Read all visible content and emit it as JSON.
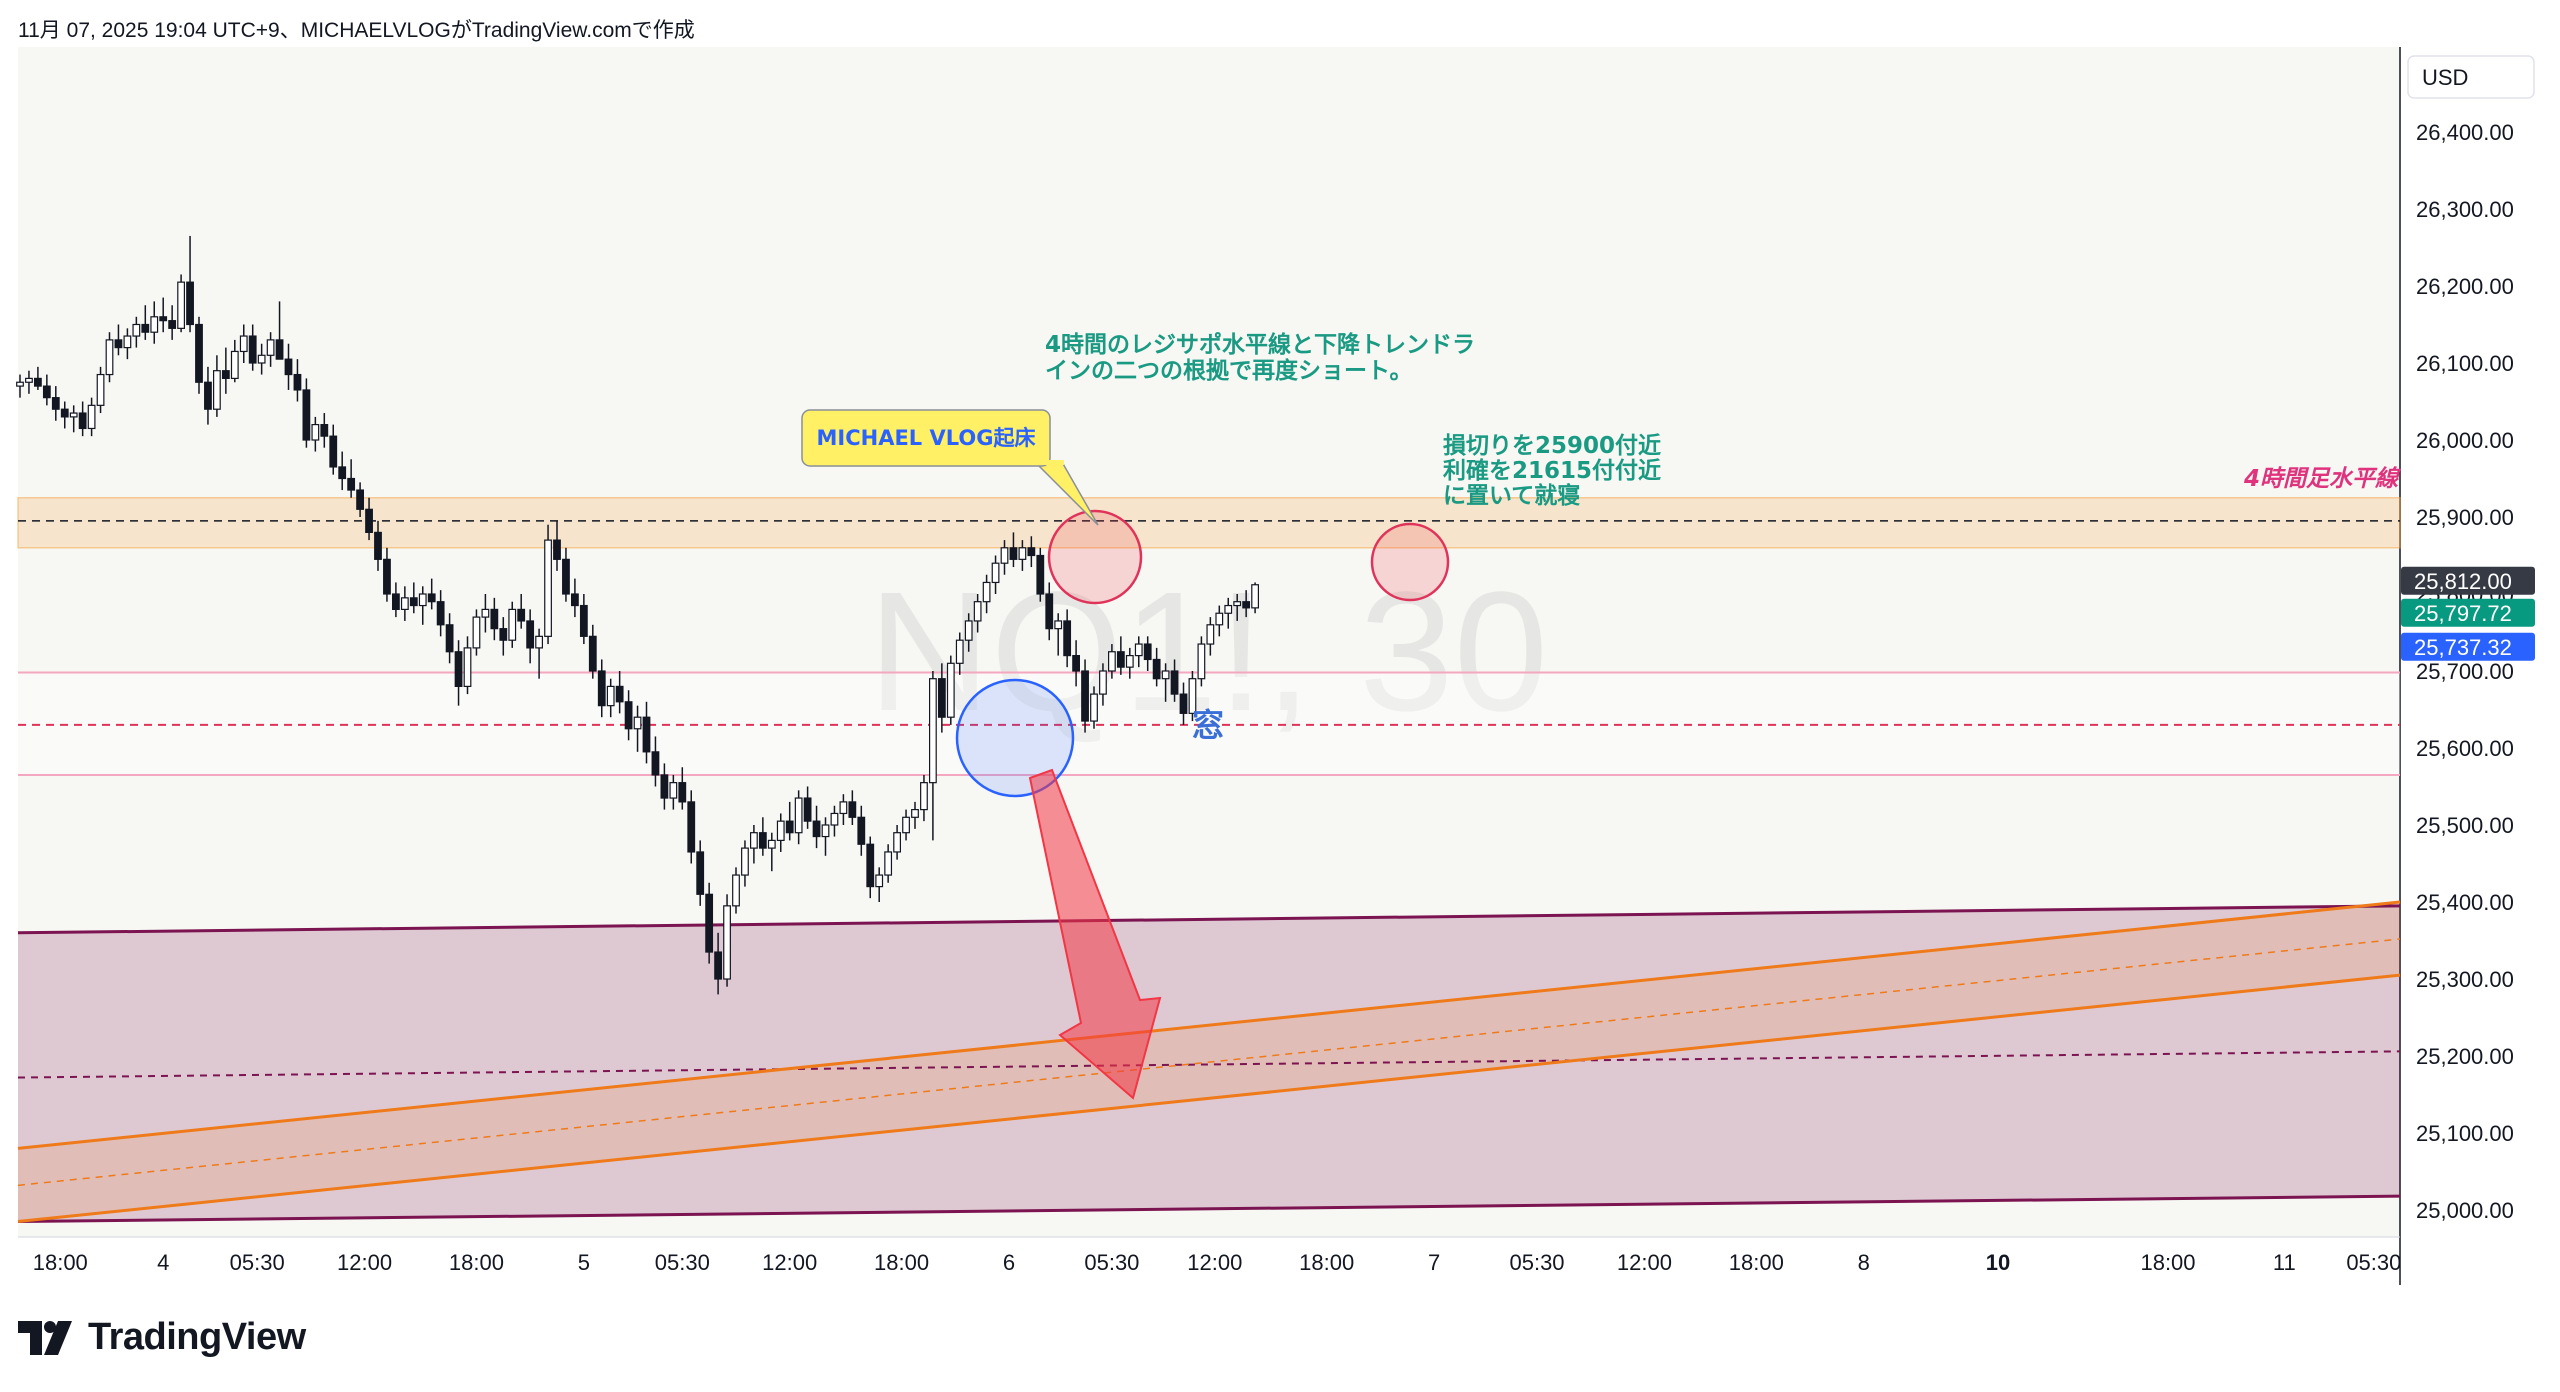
{
  "header": {
    "text": "11月 07, 2025 19:04 UTC+9、MICHAELVLOGがTradingView.comで作成"
  },
  "watermark": {
    "text": "NQ1!, 30"
  },
  "currency_label": "USD",
  "price_tags": [
    {
      "label": "25,812.00",
      "value": 25812,
      "color": "#363a45"
    },
    {
      "label": "25,797.72",
      "value": 25797.72,
      "color": "#089981"
    },
    {
      "label": "25,737.32",
      "value": 25737.32,
      "color": "#2962ff"
    }
  ],
  "annotations": {
    "short_reason_line1": "4時間のレジサポ水平線と下降トレンドラ",
    "short_reason_line2": "インの二つの根拠で再度ショート。",
    "sl_tp_line1": "損切りを25900付近",
    "sl_tp_line2": "利確を21615付付近",
    "sl_tp_line3": "に置いて就寝",
    "h4_level_label": "4時間足水平線",
    "callout": "MICHAEL VLOG起床",
    "window": "窓"
  },
  "brand": {
    "name": "TradingView"
  },
  "colors": {
    "up": "#ffffff",
    "down": "#131722",
    "resistance_band": "#f7a440",
    "channel_purple": "#7b1450",
    "trend_orange": "#ef7a1a",
    "arrow_red": "#f23645",
    "circle_red": "#f23645",
    "circle_blue": "#2962ff",
    "chart_bg": "#f7f7f4"
  },
  "chart_data": {
    "type": "candlestick",
    "symbol": "NQ1!",
    "timeframe": "30",
    "ylim": [
      24970,
      26480
    ],
    "y_ticks": [
      {
        "value": 26400,
        "label": "26,400.00"
      },
      {
        "value": 26300,
        "label": "26,300.00"
      },
      {
        "value": 26200,
        "label": "26,200.00"
      },
      {
        "value": 26100,
        "label": "26,100.00"
      },
      {
        "value": 26000,
        "label": "26,000.00"
      },
      {
        "value": 25900,
        "label": "25,900.00"
      },
      {
        "value": 25800,
        "label": "25,800.00"
      },
      {
        "value": 25700,
        "label": "25,700.00"
      },
      {
        "value": 25600,
        "label": "25,600.00"
      },
      {
        "value": 25500,
        "label": "25,500.00"
      },
      {
        "value": 25400,
        "label": "25,400.00"
      },
      {
        "value": 25300,
        "label": "25,300.00"
      },
      {
        "value": 25200,
        "label": "25,200.00"
      },
      {
        "value": 25100,
        "label": "25,100.00"
      },
      {
        "value": 25000,
        "label": "25,000.00"
      }
    ],
    "x_ticks": [
      {
        "bar": 4.5,
        "label": "18:00",
        "bold": false
      },
      {
        "bar": 16,
        "label": "4",
        "bold": false
      },
      {
        "bar": 26.5,
        "label": "05:30",
        "bold": false
      },
      {
        "bar": 38.5,
        "label": "12:00",
        "bold": false
      },
      {
        "bar": 51,
        "label": "18:00",
        "bold": false
      },
      {
        "bar": 63,
        "label": "5",
        "bold": false
      },
      {
        "bar": 74,
        "label": "05:30",
        "bold": false
      },
      {
        "bar": 86,
        "label": "12:00",
        "bold": false
      },
      {
        "bar": 98.5,
        "label": "18:00",
        "bold": false
      },
      {
        "bar": 110.5,
        "label": "6",
        "bold": false
      },
      {
        "bar": 122,
        "label": "05:30",
        "bold": false
      },
      {
        "bar": 133.5,
        "label": "12:00",
        "bold": false
      },
      {
        "bar": 146,
        "label": "18:00",
        "bold": false
      },
      {
        "bar": 158,
        "label": "7",
        "bold": false
      },
      {
        "bar": 169.5,
        "label": "05:30",
        "bold": false
      },
      {
        "bar": 181.5,
        "label": "12:00",
        "bold": false
      },
      {
        "bar": 194,
        "label": "18:00",
        "bold": false
      },
      {
        "bar": 206,
        "label": "8",
        "bold": false
      },
      {
        "bar": 221,
        "label": "10",
        "bold": true
      },
      {
        "bar": 240,
        "label": "18:00",
        "bold": false
      },
      {
        "bar": 253,
        "label": "11",
        "bold": false
      },
      {
        "bar": 263,
        "label": "05:30",
        "bold": false
      }
    ],
    "total_bars": 270,
    "levels": {
      "resistance_band": [
        25860,
        25925
      ],
      "resistance_dashed": 25895,
      "pink_line_upper": 25698,
      "red_dashed": 25630,
      "pink_line_lower": 25565
    },
    "channel": {
      "top_start": 25360,
      "top_end": 25395,
      "bottom_start": 24985,
      "bottom_end": 25018,
      "mid_dashed_start": 25172,
      "mid_dashed_end": 25206
    },
    "trendlines": {
      "upper_start": 25080,
      "upper_end": 25400,
      "lower_start": 24985,
      "lower_end": 25305,
      "mid_start": 25032,
      "mid_end": 25352
    },
    "candles": [
      [
        26070,
        26085,
        26055,
        26075
      ],
      [
        26075,
        26090,
        26060,
        26080
      ],
      [
        26080,
        26095,
        26065,
        26070
      ],
      [
        26070,
        26085,
        26045,
        26055
      ],
      [
        26055,
        26070,
        26025,
        26040
      ],
      [
        26040,
        26050,
        26015,
        26030
      ],
      [
        26030,
        26045,
        26010,
        26035
      ],
      [
        26035,
        26050,
        26005,
        26015
      ],
      [
        26015,
        26055,
        26005,
        26045
      ],
      [
        26045,
        26095,
        26035,
        26085
      ],
      [
        26085,
        26140,
        26075,
        26130
      ],
      [
        26130,
        26150,
        26110,
        26120
      ],
      [
        26120,
        26145,
        26105,
        26135
      ],
      [
        26135,
        26160,
        26120,
        26150
      ],
      [
        26150,
        26175,
        26130,
        26140
      ],
      [
        26140,
        26180,
        26125,
        26160
      ],
      [
        26160,
        26185,
        26140,
        26155
      ],
      [
        26155,
        26175,
        26130,
        26145
      ],
      [
        26145,
        26215,
        26140,
        26205
      ],
      [
        26205,
        26265,
        26140,
        26150
      ],
      [
        26150,
        26160,
        26060,
        26075
      ],
      [
        26075,
        26095,
        26020,
        26040
      ],
      [
        26040,
        26110,
        26030,
        26090
      ],
      [
        26090,
        26120,
        26060,
        26080
      ],
      [
        26080,
        26130,
        26075,
        26115
      ],
      [
        26115,
        26150,
        26100,
        26135
      ],
      [
        26135,
        26150,
        26090,
        26100
      ],
      [
        26100,
        26125,
        26085,
        26110
      ],
      [
        26110,
        26140,
        26095,
        26130
      ],
      [
        26130,
        26180,
        26110,
        26105
      ],
      [
        26105,
        26125,
        26065,
        26085
      ],
      [
        26085,
        26105,
        26050,
        26065
      ],
      [
        26065,
        26080,
        25990,
        26000
      ],
      [
        26000,
        26030,
        25985,
        26020
      ],
      [
        26020,
        26035,
        25990,
        26005
      ],
      [
        26005,
        26020,
        25955,
        25965
      ],
      [
        25965,
        25985,
        25935,
        25950
      ],
      [
        25950,
        25975,
        25925,
        25935
      ],
      [
        25935,
        25945,
        25900,
        25910
      ],
      [
        25910,
        25925,
        25870,
        25880
      ],
      [
        25880,
        25895,
        25830,
        25845
      ],
      [
        25845,
        25860,
        25790,
        25800
      ],
      [
        25800,
        25815,
        25770,
        25780
      ],
      [
        25780,
        25810,
        25765,
        25795
      ],
      [
        25795,
        25815,
        25775,
        25785
      ],
      [
        25785,
        25810,
        25760,
        25800
      ],
      [
        25800,
        25820,
        25780,
        25790
      ],
      [
        25790,
        25805,
        25745,
        25760
      ],
      [
        25760,
        25775,
        25710,
        25725
      ],
      [
        25725,
        25740,
        25655,
        25680
      ],
      [
        25680,
        25745,
        25670,
        25730
      ],
      [
        25730,
        25780,
        25720,
        25770
      ],
      [
        25770,
        25800,
        25750,
        25780
      ],
      [
        25780,
        25795,
        25740,
        25755
      ],
      [
        25755,
        25770,
        25720,
        25740
      ],
      [
        25740,
        25790,
        25730,
        25780
      ],
      [
        25780,
        25800,
        25755,
        25765
      ],
      [
        25765,
        25780,
        25710,
        25730
      ],
      [
        25730,
        25755,
        25690,
        25745
      ],
      [
        25745,
        25890,
        25735,
        25870
      ],
      [
        25870,
        25895,
        25830,
        25845
      ],
      [
        25845,
        25860,
        25790,
        25800
      ],
      [
        25800,
        25820,
        25770,
        25785
      ],
      [
        25785,
        25800,
        25735,
        25745
      ],
      [
        25745,
        25760,
        25690,
        25700
      ],
      [
        25700,
        25715,
        25640,
        25655
      ],
      [
        25655,
        25690,
        25640,
        25680
      ],
      [
        25680,
        25700,
        25645,
        25660
      ],
      [
        25660,
        25675,
        25610,
        25625
      ],
      [
        25625,
        25655,
        25595,
        25640
      ],
      [
        25640,
        25660,
        25580,
        25595
      ],
      [
        25595,
        25615,
        25550,
        25565
      ],
      [
        25565,
        25580,
        25520,
        25535
      ],
      [
        25535,
        25565,
        25520,
        25555
      ],
      [
        25555,
        25575,
        25520,
        25530
      ],
      [
        25530,
        25545,
        25450,
        25465
      ],
      [
        25465,
        25480,
        25395,
        25410
      ],
      [
        25410,
        25425,
        25320,
        25335
      ],
      [
        25335,
        25360,
        25280,
        25300
      ],
      [
        25300,
        25410,
        25290,
        25395
      ],
      [
        25395,
        25445,
        25385,
        25435
      ],
      [
        25435,
        25480,
        25420,
        25470
      ],
      [
        25470,
        25500,
        25450,
        25490
      ],
      [
        25490,
        25510,
        25460,
        25470
      ],
      [
        25470,
        25490,
        25440,
        25480
      ],
      [
        25480,
        25515,
        25465,
        25505
      ],
      [
        25505,
        25530,
        25480,
        25490
      ],
      [
        25490,
        25545,
        25475,
        25535
      ],
      [
        25535,
        25550,
        25495,
        25505
      ],
      [
        25505,
        25525,
        25470,
        25485
      ],
      [
        25485,
        25510,
        25460,
        25500
      ],
      [
        25500,
        25525,
        25485,
        25515
      ],
      [
        25515,
        25540,
        25500,
        25530
      ],
      [
        25530,
        25545,
        25500,
        25510
      ],
      [
        25510,
        25525,
        25460,
        25475
      ],
      [
        25475,
        25485,
        25405,
        25420
      ],
      [
        25420,
        25445,
        25400,
        25435
      ],
      [
        25435,
        25475,
        25425,
        25465
      ],
      [
        25465,
        25500,
        25455,
        25490
      ],
      [
        25490,
        25520,
        25480,
        25510
      ],
      [
        25510,
        25530,
        25495,
        25520
      ],
      [
        25520,
        25565,
        25505,
        25555
      ],
      [
        25555,
        25700,
        25480,
        25690
      ],
      [
        25690,
        25710,
        25620,
        25640
      ],
      [
        25640,
        25720,
        25630,
        25710
      ],
      [
        25710,
        25750,
        25695,
        25740
      ],
      [
        25740,
        25775,
        25725,
        25765
      ],
      [
        25765,
        25800,
        25750,
        25790
      ],
      [
        25790,
        25825,
        25775,
        25815
      ],
      [
        25815,
        25850,
        25800,
        25840
      ],
      [
        25840,
        25870,
        25825,
        25860
      ],
      [
        25860,
        25880,
        25835,
        25845
      ],
      [
        25845,
        25870,
        25830,
        25860
      ],
      [
        25860,
        25875,
        25835,
        25850
      ],
      [
        25850,
        25860,
        25790,
        25800
      ],
      [
        25800,
        25815,
        25740,
        25755
      ],
      [
        25755,
        25775,
        25720,
        25765
      ],
      [
        25765,
        25780,
        25705,
        25720
      ],
      [
        25720,
        25740,
        25680,
        25700
      ],
      [
        25700,
        25715,
        25620,
        25635
      ],
      [
        25635,
        25680,
        25625,
        25670
      ],
      [
        25670,
        25710,
        25655,
        25700
      ],
      [
        25700,
        25735,
        25690,
        25725
      ],
      [
        25725,
        25745,
        25695,
        25705
      ],
      [
        25705,
        25730,
        25690,
        25720
      ],
      [
        25720,
        25745,
        25705,
        25735
      ],
      [
        25735,
        25745,
        25700,
        25715
      ],
      [
        25715,
        25730,
        25680,
        25690
      ],
      [
        25690,
        25710,
        25660,
        25700
      ],
      [
        25700,
        25715,
        25660,
        25670
      ],
      [
        25670,
        25685,
        25630,
        25645
      ],
      [
        25645,
        25700,
        25635,
        25690
      ],
      [
        25690,
        25745,
        25680,
        25735
      ],
      [
        25735,
        25770,
        25720,
        25760
      ],
      [
        25760,
        25785,
        25745,
        25775
      ],
      [
        25775,
        25795,
        25755,
        25785
      ],
      [
        25785,
        25800,
        25765,
        25790
      ],
      [
        25790,
        25805,
        25770,
        25782
      ],
      [
        25782,
        25815,
        25775,
        25812
      ]
    ]
  }
}
